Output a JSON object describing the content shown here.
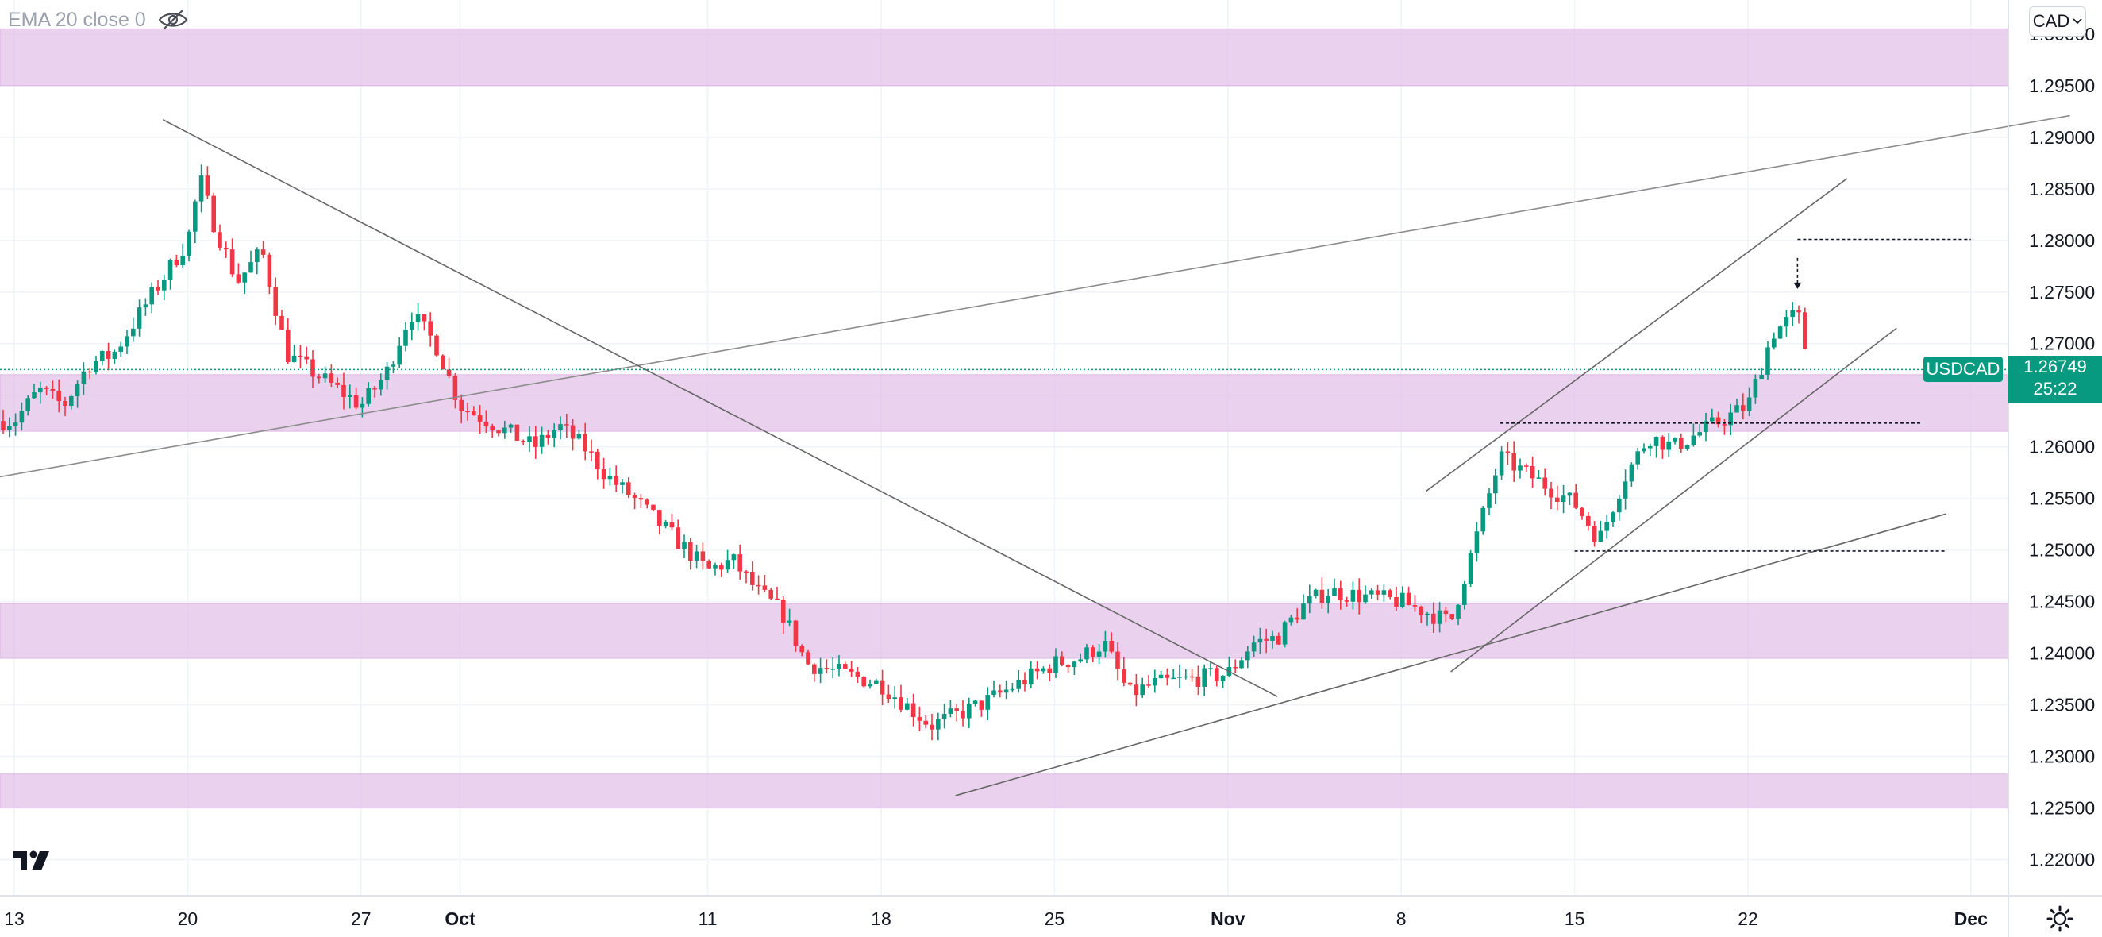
{
  "indicator": {
    "label": "EMA 20 close 0",
    "icon": "eye-crossed-icon"
  },
  "currency_button": {
    "label": "CAD",
    "icon": "chevron-down-icon"
  },
  "symbol_tag": "USDCAD",
  "last_price": {
    "value": "1.26749",
    "countdown": "25:22"
  },
  "logo_icon": "tradingview-logo-icon",
  "settings_icon": "gear-icon",
  "colors": {
    "up": "#089981",
    "down": "#f23645",
    "zone": "#e1bee7",
    "grid": "#f0f3fa",
    "trendline": "#8c8c8c"
  },
  "chart_data": {
    "type": "candlestick",
    "symbol": "USDCAD",
    "x_tick_labels": [
      {
        "label": "13",
        "date": "2021-09-13"
      },
      {
        "label": "20",
        "date": "2021-09-20"
      },
      {
        "label": "27",
        "date": "2021-09-27"
      },
      {
        "label": "Oct",
        "date": "2021-10-01"
      },
      {
        "label": "11",
        "date": "2021-10-11"
      },
      {
        "label": "18",
        "date": "2021-10-18"
      },
      {
        "label": "25",
        "date": "2021-10-25"
      },
      {
        "label": "Nov",
        "date": "2021-11-01"
      },
      {
        "label": "8",
        "date": "2021-11-08"
      },
      {
        "label": "15",
        "date": "2021-11-15"
      },
      {
        "label": "22",
        "date": "2021-11-22"
      },
      {
        "label": "Dec",
        "date": "2021-12-01"
      }
    ],
    "y_tick_labels": [
      "1.30000",
      "1.29500",
      "1.29000",
      "1.28500",
      "1.28000",
      "1.27500",
      "1.27000",
      "1.26500",
      "1.26000",
      "1.25500",
      "1.25000",
      "1.24500",
      "1.24000",
      "1.23500",
      "1.23000",
      "1.22500",
      "1.22000"
    ],
    "ylim": [
      1.2165,
      1.3033
    ],
    "last_price": 1.26749,
    "price_path": [
      [
        "2021-09-13",
        1.2625
      ],
      [
        "2021-09-14",
        1.2655
      ],
      [
        "2021-09-15",
        1.264
      ],
      [
        "2021-09-16",
        1.268
      ],
      [
        "2021-09-17",
        1.269
      ],
      [
        "2021-09-20",
        1.28
      ],
      [
        "2021-09-20T12",
        1.286
      ],
      [
        "2021-09-21",
        1.282
      ],
      [
        "2021-09-22",
        1.276
      ],
      [
        "2021-09-23",
        1.279
      ],
      [
        "2021-09-24",
        1.269
      ],
      [
        "2021-09-27",
        1.264
      ],
      [
        "2021-09-28",
        1.267
      ],
      [
        "2021-09-29",
        1.273
      ],
      [
        "2021-09-30",
        1.27
      ],
      [
        "2021-10-01",
        1.264
      ],
      [
        "2021-10-04",
        1.26
      ],
      [
        "2021-10-05",
        1.262
      ],
      [
        "2021-10-06",
        1.26
      ],
      [
        "2021-10-07",
        1.257
      ],
      [
        "2021-10-08",
        1.255
      ],
      [
        "2021-10-11",
        1.248
      ],
      [
        "2021-10-12",
        1.249
      ],
      [
        "2021-10-13",
        1.246
      ],
      [
        "2021-10-14",
        1.244
      ],
      [
        "2021-10-15",
        1.239
      ],
      [
        "2021-10-18",
        1.237
      ],
      [
        "2021-10-19",
        1.235
      ],
      [
        "2021-10-20",
        1.233
      ],
      [
        "2021-10-21",
        1.234
      ],
      [
        "2021-10-22",
        1.235
      ],
      [
        "2021-10-25",
        1.239
      ],
      [
        "2021-10-26",
        1.2395
      ],
      [
        "2021-10-27",
        1.241
      ],
      [
        "2021-10-28",
        1.236
      ],
      [
        "2021-10-29",
        1.237
      ],
      [
        "2021-11-01",
        1.238
      ],
      [
        "2021-11-02",
        1.241
      ],
      [
        "2021-11-03",
        1.2415
      ],
      [
        "2021-11-04",
        1.2445
      ],
      [
        "2021-11-05",
        1.246
      ],
      [
        "2021-11-08",
        1.245
      ],
      [
        "2021-11-09",
        1.244
      ],
      [
        "2021-11-10",
        1.243
      ],
      [
        "2021-11-11",
        1.251
      ],
      [
        "2021-11-12",
        1.259
      ],
      [
        "2021-11-15",
        1.2545
      ],
      [
        "2021-11-16",
        1.251
      ],
      [
        "2021-11-17",
        1.257
      ],
      [
        "2021-11-18",
        1.261
      ],
      [
        "2021-11-19",
        1.26
      ],
      [
        "2021-11-22",
        1.264
      ],
      [
        "2021-11-23",
        1.271
      ],
      [
        "2021-11-24",
        1.273
      ],
      [
        "2021-11-24T12",
        1.26749
      ]
    ],
    "zones": [
      {
        "from": 1.295,
        "to": 1.3005
      },
      {
        "from": 1.2615,
        "to": 1.267
      },
      {
        "from": 1.2395,
        "to": 1.2448
      },
      {
        "from": 1.225,
        "to": 1.2283
      }
    ],
    "trendlines": [
      {
        "from": [
          "2021-09-11",
          1.2565
        ],
        "to": [
          "2021-12-05",
          1.2921
        ],
        "color": "#8c8c8c"
      },
      {
        "from": [
          "2021-09-19",
          1.2917
        ],
        "to": [
          "2021-11-03",
          1.2358
        ],
        "color": "#666666"
      },
      {
        "from": [
          "2021-10-21",
          1.2262
        ],
        "to": [
          "2021-11-30",
          1.2535
        ],
        "color": "#666666"
      },
      {
        "from": [
          "2021-11-10",
          1.2382
        ],
        "to": [
          "2021-11-28",
          1.2715
        ],
        "color": "#666666"
      },
      {
        "from": [
          "2021-11-09",
          1.2557
        ],
        "to": [
          "2021-11-26",
          1.286
        ],
        "color": "#666666"
      }
    ],
    "dashed_levels": [
      {
        "price": 1.2801,
        "from": "2021-11-24",
        "to": "2021-12-01"
      },
      {
        "price": 1.2623,
        "from": "2021-11-12",
        "to": "2021-11-29"
      },
      {
        "price": 1.2499,
        "from": "2021-11-15",
        "to": "2021-11-30"
      }
    ],
    "arrow": {
      "date": "2021-11-24",
      "from": 1.2783,
      "to": 1.2753
    },
    "legend": "none"
  }
}
